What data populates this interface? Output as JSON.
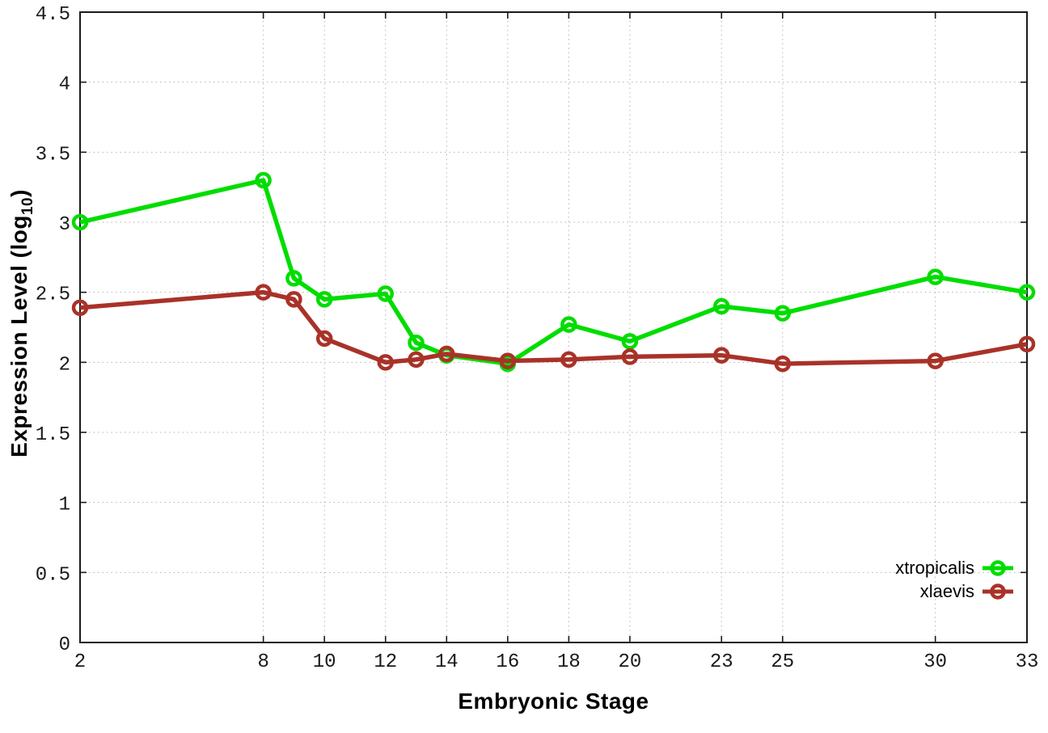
{
  "chart_data": {
    "type": "line",
    "title": "",
    "xlabel": "Embryonic Stage",
    "ylabel": "Expression Level (log10)",
    "ylabel_parts": {
      "prefix": "Expression Level (log",
      "subscript": "10",
      "suffix": ")"
    },
    "xlim": [
      2,
      33
    ],
    "ylim": [
      0,
      4.5
    ],
    "grid": true,
    "legend_position": "inside-bottom-right",
    "x_ticks": [
      {
        "v": 2,
        "label": "2"
      },
      {
        "v": 8,
        "label": "8"
      },
      {
        "v": 10,
        "label": "10"
      },
      {
        "v": 12,
        "label": "12"
      },
      {
        "v": 14,
        "label": "14"
      },
      {
        "v": 16,
        "label": "16"
      },
      {
        "v": 18,
        "label": "18"
      },
      {
        "v": 20,
        "label": "20"
      },
      {
        "v": 23,
        "label": "23"
      },
      {
        "v": 25,
        "label": "25"
      },
      {
        "v": 30,
        "label": "30"
      },
      {
        "v": 33,
        "label": "33"
      }
    ],
    "y_ticks": [
      {
        "v": 0,
        "label": "0"
      },
      {
        "v": 0.5,
        "label": "0.5"
      },
      {
        "v": 1,
        "label": "1"
      },
      {
        "v": 1.5,
        "label": "1.5"
      },
      {
        "v": 2,
        "label": "2"
      },
      {
        "v": 2.5,
        "label": "2.5"
      },
      {
        "v": 3,
        "label": "3"
      },
      {
        "v": 3.5,
        "label": "3.5"
      },
      {
        "v": 4,
        "label": "4"
      },
      {
        "v": 4.5,
        "label": "4.5"
      }
    ],
    "x": [
      2,
      8,
      9,
      10,
      12,
      13,
      14,
      16,
      18,
      20,
      23,
      25,
      30,
      33
    ],
    "series": [
      {
        "name": "xtropicalis",
        "color": "#00dd00",
        "marker": "open-circle",
        "values": [
          3.0,
          3.3,
          2.6,
          2.45,
          2.49,
          2.14,
          2.05,
          1.99,
          2.27,
          2.15,
          2.4,
          2.35,
          2.61,
          2.5
        ]
      },
      {
        "name": "xlaevis",
        "color": "#a93228",
        "marker": "open-circle",
        "values": [
          2.39,
          2.5,
          2.45,
          2.17,
          2.0,
          2.02,
          2.06,
          2.01,
          2.02,
          2.04,
          2.05,
          1.99,
          2.01,
          2.13
        ]
      }
    ],
    "colors": {
      "grid": "#b3b3b3",
      "border": "#1a1a1a",
      "tick_text": "#1a1a1a",
      "background": "#ffffff"
    }
  }
}
